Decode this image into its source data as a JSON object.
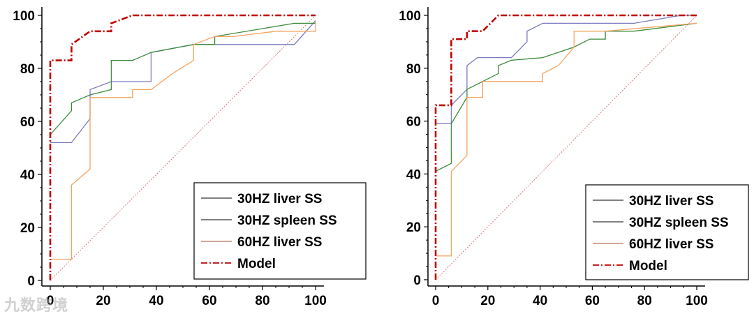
{
  "watermark": "九数跨境",
  "chart_data": [
    {
      "type": "line",
      "xlim": [
        0,
        100
      ],
      "ylim": [
        0,
        100
      ],
      "xticks": [
        "0",
        "20",
        "40",
        "60",
        "80",
        "100"
      ],
      "yticks": [
        "0",
        "20",
        "40",
        "60",
        "80",
        "100"
      ],
      "legend": [
        "30HZ liver SS",
        "30HZ spleen SS",
        "60HZ liver SS",
        "Model"
      ],
      "series": [
        {
          "name": "30HZ liver SS",
          "color": "#7b7bc0",
          "dash": "",
          "points": [
            [
              0,
              52
            ],
            [
              8,
              52
            ],
            [
              15,
              61
            ],
            [
              15,
              72
            ],
            [
              23,
              75
            ],
            [
              38,
              75
            ],
            [
              38,
              86
            ],
            [
              54,
              89
            ],
            [
              92,
              89
            ],
            [
              100,
              98
            ]
          ]
        },
        {
          "name": "30HZ spleen SS",
          "color": "#3a8a3a",
          "dash": "",
          "points": [
            [
              0,
              55
            ],
            [
              8,
              64
            ],
            [
              8,
              67
            ],
            [
              15,
              70
            ],
            [
              23,
              72
            ],
            [
              23,
              83
            ],
            [
              31,
              83
            ],
            [
              38,
              86
            ],
            [
              54,
              89
            ],
            [
              62,
              89
            ],
            [
              62,
              92
            ],
            [
              92,
              97
            ],
            [
              100,
              97
            ]
          ]
        },
        {
          "name": "60HZ liver SS",
          "color": "#f4a460",
          "dash": "",
          "points": [
            [
              0,
              8
            ],
            [
              8,
              8
            ],
            [
              8,
              36
            ],
            [
              15,
              42
            ],
            [
              15,
              69
            ],
            [
              31,
              69
            ],
            [
              31,
              72
            ],
            [
              38,
              72
            ],
            [
              46,
              78
            ],
            [
              54,
              83
            ],
            [
              54,
              89
            ],
            [
              62,
              92
            ],
            [
              69,
              92
            ],
            [
              85,
              94
            ],
            [
              100,
              94
            ],
            [
              100,
              98
            ]
          ]
        },
        {
          "name": "Model",
          "color": "#c00000",
          "dash": "9,3,2,3",
          "width": 2.6,
          "points": [
            [
              0,
              0
            ],
            [
              0,
              83
            ],
            [
              8,
              83
            ],
            [
              8,
              89
            ],
            [
              15,
              94
            ],
            [
              23,
              94
            ],
            [
              23,
              97
            ],
            [
              31,
              100
            ],
            [
              100,
              100
            ]
          ]
        },
        {
          "name": "diagonal",
          "color": "#d97a7a",
          "dash": "2,2",
          "width": 1,
          "points": [
            [
              0,
              0
            ],
            [
              100,
              100
            ]
          ]
        }
      ]
    },
    {
      "type": "line",
      "xlim": [
        0,
        100
      ],
      "ylim": [
        0,
        100
      ],
      "xticks": [
        "0",
        "20",
        "40",
        "60",
        "80",
        "100"
      ],
      "yticks": [
        "0",
        "20",
        "40",
        "60",
        "80",
        "100"
      ],
      "legend": [
        "30HZ liver SS",
        "30HZ spleen SS",
        "60HZ liver SS",
        "Model"
      ],
      "series": [
        {
          "name": "30HZ liver SS",
          "color": "#7b7bc0",
          "dash": "",
          "points": [
            [
              0,
              59
            ],
            [
              6,
              59
            ],
            [
              6,
              66
            ],
            [
              12,
              72
            ],
            [
              12,
              81
            ],
            [
              16,
              84
            ],
            [
              29,
              84
            ],
            [
              35,
              90
            ],
            [
              35,
              94
            ],
            [
              41,
              97
            ],
            [
              76,
              97
            ],
            [
              94,
              100
            ],
            [
              100,
              100
            ]
          ]
        },
        {
          "name": "30HZ spleen SS",
          "color": "#3a8a3a",
          "dash": "",
          "points": [
            [
              0,
              41
            ],
            [
              6,
              44
            ],
            [
              6,
              59
            ],
            [
              12,
              69
            ],
            [
              12,
              72
            ],
            [
              18,
              75
            ],
            [
              24,
              78
            ],
            [
              24,
              81
            ],
            [
              29,
              83
            ],
            [
              41,
              84
            ],
            [
              53,
              88
            ],
            [
              59,
              91
            ],
            [
              65,
              91
            ],
            [
              65,
              94
            ],
            [
              76,
              94
            ],
            [
              100,
              97
            ]
          ]
        },
        {
          "name": "60HZ liver SS",
          "color": "#f4a460",
          "dash": "",
          "points": [
            [
              0,
              9
            ],
            [
              6,
              9
            ],
            [
              6,
              41
            ],
            [
              12,
              47
            ],
            [
              12,
              69
            ],
            [
              18,
              69
            ],
            [
              18,
              75
            ],
            [
              41,
              75
            ],
            [
              41,
              78
            ],
            [
              47,
              81
            ],
            [
              53,
              88
            ],
            [
              53,
              94
            ],
            [
              65,
              94
            ],
            [
              100,
              97
            ]
          ]
        },
        {
          "name": "Model",
          "color": "#c00000",
          "dash": "9,3,2,3",
          "width": 2.6,
          "points": [
            [
              0,
              0
            ],
            [
              0,
              66
            ],
            [
              6,
              66
            ],
            [
              6,
              91
            ],
            [
              12,
              91
            ],
            [
              12,
              94
            ],
            [
              18,
              94
            ],
            [
              24,
              100
            ],
            [
              100,
              100
            ]
          ]
        },
        {
          "name": "diagonal",
          "color": "#d97a7a",
          "dash": "2,2",
          "width": 1,
          "points": [
            [
              0,
              0
            ],
            [
              100,
              100
            ]
          ]
        }
      ]
    }
  ]
}
